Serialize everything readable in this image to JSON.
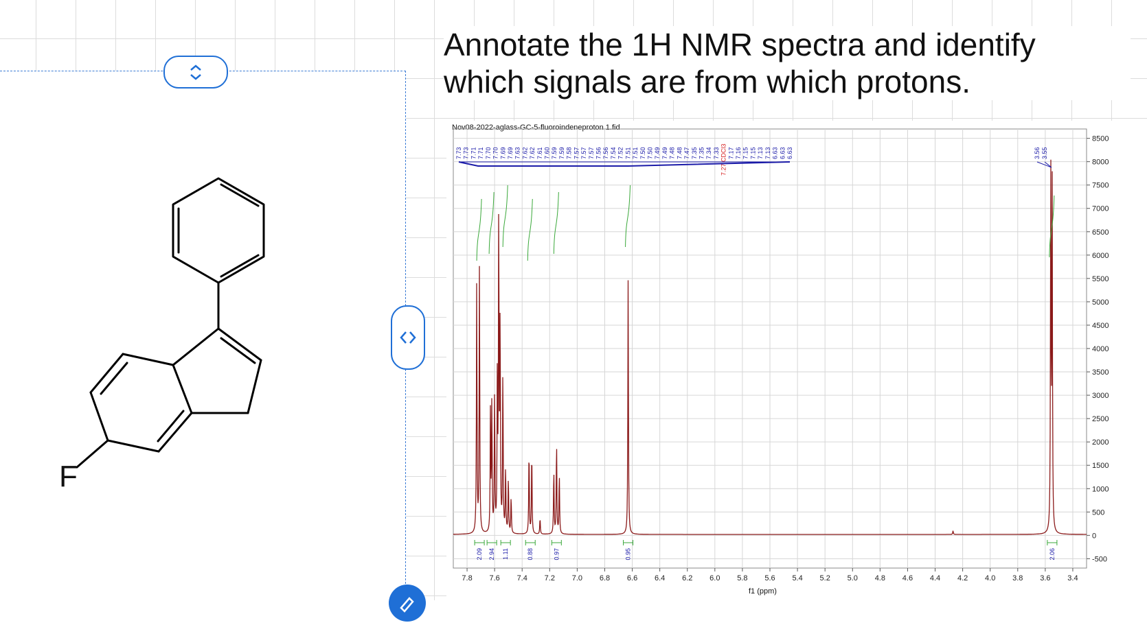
{
  "question": {
    "line1": "Annotate the 1H NMR spectra and identify",
    "line2": "which signals are from which protons."
  },
  "molecule": {
    "atom_label": "F",
    "name_icon": "fluoro-phenyl-indene-structure"
  },
  "panel": {
    "top_handle_icon": "chevron-up-down-icon",
    "side_handle_icon": "chevron-left-right-icon",
    "fab_icon": "edit-pencil-icon",
    "accent": "#1f6fd6"
  },
  "spectrum": {
    "filename": "Nov08-2022-aglass-GC-5-fluoroindeneproton.1.fid",
    "xlabel": "f1 (ppm)",
    "x_ticks": [
      "7.8",
      "7.6",
      "7.4",
      "7.2",
      "7.0",
      "6.8",
      "6.6",
      "6.4",
      "6.2",
      "6.0",
      "5.8",
      "5.6",
      "5.4",
      "5.2",
      "5.0",
      "4.8",
      "4.6",
      "4.4",
      "4.2",
      "4.0",
      "3.8",
      "3.6",
      "3.4"
    ],
    "y_ticks": [
      "8500",
      "8000",
      "7500",
      "7000",
      "6500",
      "6000",
      "5500",
      "5000",
      "4500",
      "4000",
      "3500",
      "3000",
      "2500",
      "2000",
      "1500",
      "1000",
      "500",
      "0",
      "-500"
    ],
    "peak_labels_left": [
      "7.73",
      "7.73",
      "7.71",
      "7.71",
      "7.70",
      "7.70",
      "7.69",
      "7.69",
      "7.63",
      "7.62",
      "7.62",
      "7.61",
      "7.60",
      "7.59",
      "7.59",
      "7.58",
      "7.57",
      "7.57",
      "7.57",
      "7.56",
      "7.56",
      "7.54",
      "7.52",
      "7.51",
      "7.51",
      "7.50",
      "7.50",
      "7.49",
      "7.49",
      "7.48",
      "7.48",
      "7.47",
      "7.35",
      "7.35",
      "7.34",
      "7.33",
      "7.27 CDCl3",
      "7.17",
      "7.16",
      "7.15",
      "7.15",
      "7.13",
      "7.13",
      "6.63",
      "6.63",
      "6.63"
    ],
    "peak_labels_right": [
      "3.56",
      "3.55"
    ],
    "integrals": [
      {
        "value": "2.09",
        "ppm": 7.71
      },
      {
        "value": "2.94",
        "ppm": 7.62
      },
      {
        "value": "1.11",
        "ppm": 7.52
      },
      {
        "value": "0.88",
        "ppm": 7.34
      },
      {
        "value": "0.97",
        "ppm": 7.15
      },
      {
        "value": "0.95",
        "ppm": 6.63
      },
      {
        "value": "2.06",
        "ppm": 3.55
      }
    ],
    "colors": {
      "trace": "#8b1a1a",
      "labels": "#1a1aa8",
      "integral": "#3aa83a",
      "solvent": "#d62020",
      "grid": "#d6d6d6"
    }
  },
  "chart_data": {
    "type": "line",
    "title": "Nov08-2022-aglass-GC-5-fluoroindeneproton.1.fid",
    "xlabel": "f1 (ppm)",
    "ylabel": "",
    "xlim": [
      7.9,
      3.3
    ],
    "ylim": [
      -700,
      8700
    ],
    "x_reversed": true,
    "grid": true,
    "series": [
      {
        "peaks": [
          {
            "ppm": 7.73,
            "height": 5400
          },
          {
            "ppm": 7.71,
            "height": 5800
          },
          {
            "ppm": 7.63,
            "height": 2700
          },
          {
            "ppm": 7.62,
            "height": 2800
          },
          {
            "ppm": 7.6,
            "height": 3000
          },
          {
            "ppm": 7.58,
            "height": 3400
          },
          {
            "ppm": 7.57,
            "height": 6850
          },
          {
            "ppm": 7.56,
            "height": 4500
          },
          {
            "ppm": 7.54,
            "height": 3500
          },
          {
            "ppm": 7.52,
            "height": 1400
          },
          {
            "ppm": 7.5,
            "height": 1200
          },
          {
            "ppm": 7.48,
            "height": 800
          },
          {
            "ppm": 7.35,
            "height": 1850
          },
          {
            "ppm": 7.33,
            "height": 1800
          },
          {
            "ppm": 7.27,
            "height": 350
          },
          {
            "ppm": 7.17,
            "height": 1400
          },
          {
            "ppm": 7.15,
            "height": 2000
          },
          {
            "ppm": 7.13,
            "height": 1300
          },
          {
            "ppm": 6.63,
            "height": 5500
          },
          {
            "ppm": 4.27,
            "height": 80
          },
          {
            "ppm": 3.56,
            "height": 7900
          },
          {
            "ppm": 3.55,
            "height": 7700
          }
        ]
      }
    ]
  }
}
